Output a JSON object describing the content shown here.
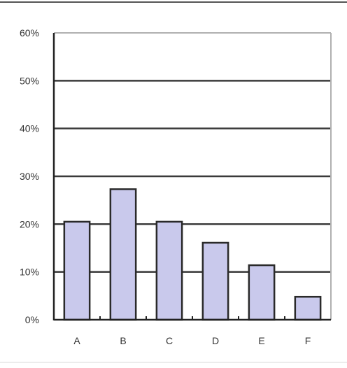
{
  "chart_data": {
    "type": "bar",
    "categories": [
      "A",
      "B",
      "C",
      "D",
      "E",
      "F"
    ],
    "values": [
      20.5,
      27.3,
      20.5,
      16.1,
      11.4,
      4.8
    ],
    "y_unit": "%",
    "ylim": [
      0,
      60
    ],
    "y_ticks": [
      "0%",
      "10%",
      "20%",
      "30%",
      "40%",
      "50%",
      "60%"
    ],
    "grid": true,
    "legend": "none",
    "colors": {
      "bar_fill": "#c9c9ec",
      "bar_stroke": "#2a2a2a",
      "grid": "#3a3a3a",
      "frame": "#b0b0b0",
      "text": "#333333"
    }
  }
}
